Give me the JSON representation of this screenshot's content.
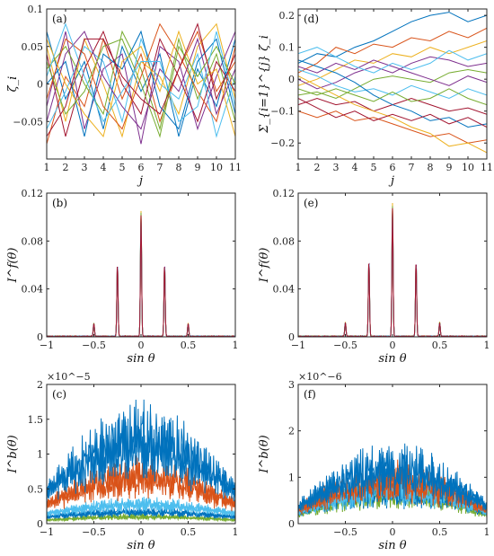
{
  "palette": [
    "#0072BD",
    "#D95319",
    "#EDB120",
    "#7E2F8E",
    "#77AC30",
    "#4DBEEE",
    "#A2142F"
  ],
  "chart_data": [
    {
      "id": "a",
      "type": "line",
      "letter": "(a)",
      "ylabel": "ζ_i",
      "xlabel": "j",
      "xlim": [
        1,
        11
      ],
      "ylim": [
        -0.1,
        0.1
      ],
      "xticks": [
        1,
        2,
        3,
        4,
        5,
        6,
        7,
        8,
        9,
        10,
        11
      ],
      "yticks": [
        -0.1,
        -0.05,
        0,
        0.05,
        0.1
      ],
      "ytick_labels": [
        "",
        "-0.05",
        "0",
        "0.05",
        "0.1"
      ],
      "x": [
        1,
        2,
        3,
        4,
        5,
        6,
        7,
        8,
        9,
        10,
        11
      ],
      "series": [
        {
          "values": [
            0.07,
            -0.02,
            0.03,
            -0.06,
            0.05,
            -0.01,
            0.04,
            -0.07,
            0.02,
            -0.03,
            0.06
          ]
        },
        {
          "values": [
            -0.08,
            0.01,
            -0.03,
            0.06,
            -0.02,
            0.04,
            -0.05,
            0.02,
            0.07,
            -0.01,
            0.03
          ]
        },
        {
          "values": [
            0.05,
            -0.05,
            0.06,
            0.0,
            -0.07,
            0.03,
            0.01,
            -0.04,
            0.05,
            0.08,
            -0.02
          ]
        },
        {
          "values": [
            -0.03,
            0.07,
            -0.06,
            0.02,
            0.04,
            -0.08,
            0.05,
            0.03,
            -0.06,
            0.01,
            0.07
          ]
        },
        {
          "values": [
            0.02,
            0.05,
            0.0,
            -0.04,
            0.07,
            0.02,
            -0.06,
            0.06,
            -0.02,
            0.04,
            -0.05
          ]
        },
        {
          "values": [
            -0.06,
            -0.01,
            0.05,
            0.03,
            -0.05,
            0.06,
            0.0,
            -0.02,
            0.04,
            -0.07,
            0.01
          ]
        },
        {
          "values": [
            0.04,
            -0.07,
            0.02,
            0.07,
            0.0,
            -0.04,
            0.06,
            0.01,
            -0.05,
            0.03,
            -0.01
          ]
        },
        {
          "values": [
            0.0,
            0.03,
            -0.07,
            0.04,
            0.02,
            0.07,
            -0.03,
            -0.06,
            0.03,
            0.06,
            -0.04
          ]
        },
        {
          "values": [
            -0.02,
            0.06,
            0.04,
            -0.03,
            -0.06,
            0.01,
            0.08,
            0.04,
            -0.01,
            -0.05,
            0.05
          ]
        },
        {
          "values": [
            0.06,
            0.0,
            -0.04,
            -0.07,
            0.03,
            0.05,
            -0.01,
            0.07,
            0.0,
            0.02,
            -0.07
          ]
        },
        {
          "values": [
            -0.05,
            0.04,
            0.07,
            0.01,
            -0.03,
            -0.06,
            0.02,
            -0.01,
            0.06,
            -0.04,
            0.02
          ]
        },
        {
          "values": [
            0.03,
            -0.04,
            -0.01,
            0.05,
            0.06,
            0.0,
            -0.07,
            0.05,
            0.01,
            0.05,
            0.0
          ]
        },
        {
          "values": [
            0.01,
            0.08,
            0.01,
            -0.05,
            -0.01,
            0.03,
            0.03,
            -0.05,
            -0.03,
            0.07,
            -0.03
          ]
        },
        {
          "values": [
            -0.07,
            -0.03,
            0.06,
            0.06,
            0.01,
            -0.02,
            -0.04,
            0.02,
            0.08,
            -0.02,
            0.04
          ]
        }
      ]
    },
    {
      "id": "d",
      "type": "line",
      "letter": "(d)",
      "ylabel": "Σ_{i=1}^{j} ζ_i",
      "xlabel": "j",
      "xlim": [
        1,
        11
      ],
      "ylim": [
        -0.25,
        0.22
      ],
      "xticks": [
        1,
        2,
        3,
        4,
        5,
        6,
        7,
        8,
        9,
        10,
        11
      ],
      "yticks": [
        -0.2,
        -0.1,
        0,
        0.1,
        0.2
      ],
      "ytick_labels": [
        "-0.2",
        "-0.1",
        "0",
        "0.1",
        "0.2"
      ],
      "x": [
        1,
        2,
        3,
        4,
        5,
        6,
        7,
        8,
        9,
        10,
        11
      ],
      "series": [
        {
          "values": [
            0.05,
            0.08,
            0.07,
            0.1,
            0.12,
            0.15,
            0.18,
            0.2,
            0.21,
            0.18,
            0.2
          ]
        },
        {
          "values": [
            0.02,
            0.05,
            0.1,
            0.08,
            0.11,
            0.1,
            0.13,
            0.12,
            0.15,
            0.13,
            0.16
          ]
        },
        {
          "values": [
            -0.02,
            0.0,
            0.03,
            0.06,
            0.05,
            0.08,
            0.07,
            0.1,
            0.08,
            0.1,
            0.12
          ]
        },
        {
          "values": [
            0.0,
            -0.03,
            -0.01,
            0.02,
            0.04,
            0.02,
            0.05,
            0.07,
            0.06,
            0.04,
            0.05
          ]
        },
        {
          "values": [
            -0.05,
            -0.04,
            -0.06,
            -0.03,
            0.0,
            0.01,
            0.0,
            -0.01,
            0.02,
            0.03,
            0.02
          ]
        },
        {
          "values": [
            0.03,
            0.01,
            -0.02,
            -0.04,
            -0.03,
            -0.05,
            -0.02,
            -0.04,
            -0.06,
            -0.03,
            -0.05
          ]
        },
        {
          "values": [
            -0.08,
            -0.06,
            -0.08,
            -0.07,
            -0.1,
            -0.08,
            -0.06,
            -0.08,
            -0.1,
            -0.09,
            -0.11
          ]
        },
        {
          "values": [
            0.06,
            0.04,
            0.02,
            -0.01,
            -0.05,
            -0.08,
            -0.1,
            -0.13,
            -0.12,
            -0.15,
            -0.14
          ]
        },
        {
          "values": [
            -0.1,
            -0.12,
            -0.1,
            -0.13,
            -0.12,
            -0.14,
            -0.16,
            -0.18,
            -0.17,
            -0.2,
            -0.19
          ]
        },
        {
          "values": [
            0.01,
            -0.02,
            -0.05,
            -0.08,
            -0.1,
            -0.12,
            -0.15,
            -0.17,
            -0.21,
            -0.2,
            -0.23
          ]
        },
        {
          "values": [
            0.04,
            0.02,
            0.05,
            0.03,
            0.06,
            0.04,
            0.02,
            0.0,
            -0.02,
            0.01,
            -0.01
          ]
        },
        {
          "values": [
            -0.03,
            -0.05,
            -0.03,
            -0.05,
            -0.07,
            -0.04,
            -0.07,
            -0.06,
            -0.03,
            -0.06,
            -0.08
          ]
        },
        {
          "values": [
            0.08,
            0.1,
            0.07,
            0.04,
            0.02,
            0.05,
            0.03,
            0.05,
            0.09,
            0.06,
            0.08
          ]
        },
        {
          "values": [
            -0.06,
            -0.09,
            -0.12,
            -0.1,
            -0.13,
            -0.11,
            -0.13,
            -0.11,
            -0.14,
            -0.12,
            -0.15
          ]
        }
      ]
    },
    {
      "id": "b",
      "type": "line",
      "letter": "(b)",
      "ylabel": "I^f(θ)",
      "xlabel": "sin θ",
      "xlim": [
        -1,
        1
      ],
      "ylim": [
        0,
        0.12
      ],
      "xticks": [
        -1,
        -0.5,
        0,
        0.5,
        1
      ],
      "yticks": [
        0,
        0.04,
        0.08,
        0.12
      ],
      "ytick_labels": [
        "0",
        "0.04",
        "0.08",
        "0.12"
      ],
      "peaks": [
        {
          "x": -0.5,
          "height": 0.011
        },
        {
          "x": -0.25,
          "height": 0.062
        },
        {
          "x": 0,
          "height": 0.105
        },
        {
          "x": 0.25,
          "height": 0.062
        },
        {
          "x": 0.5,
          "height": 0.011
        }
      ]
    },
    {
      "id": "e",
      "type": "line",
      "letter": "(e)",
      "ylabel": "I^f(θ)",
      "xlabel": "sin θ",
      "xlim": [
        -1,
        1
      ],
      "ylim": [
        0,
        0.12
      ],
      "xticks": [
        -1,
        -0.5,
        0,
        0.5,
        1
      ],
      "yticks": [
        0,
        0.04,
        0.08,
        0.12
      ],
      "ytick_labels": [
        "0",
        "0.04",
        "0.08",
        "0.12"
      ],
      "peaks": [
        {
          "x": -0.5,
          "height": 0.012
        },
        {
          "x": -0.25,
          "height": 0.065
        },
        {
          "x": 0,
          "height": 0.111
        },
        {
          "x": 0.25,
          "height": 0.064
        },
        {
          "x": 0.5,
          "height": 0.012
        }
      ]
    },
    {
      "id": "c",
      "type": "line",
      "letter": "(c)",
      "ylabel": "I^b(θ)",
      "xlabel": "sin θ",
      "exponent": "×10^−5",
      "xlim": [
        -1,
        1
      ],
      "ylim": [
        0,
        2
      ],
      "xticks": [
        -1,
        -0.5,
        0,
        0.5,
        1
      ],
      "yticks": [
        0,
        0.5,
        1,
        1.5,
        2
      ],
      "ytick_labels": [
        "0",
        "0.5",
        "1",
        "1.5",
        "2"
      ],
      "envelopes": [
        {
          "base": 0.4,
          "peak": 1.8
        },
        {
          "base": 0.25,
          "peak": 1.0
        },
        {
          "base": 0.15,
          "peak": 0.4
        },
        {
          "base": 0.1,
          "peak": 0.25
        },
        {
          "base": 0.05,
          "peak": 0.15
        }
      ]
    },
    {
      "id": "f",
      "type": "line",
      "letter": "(f)",
      "ylabel": "I^b(θ)",
      "xlabel": "sin θ",
      "exponent": "×10^−6",
      "xlim": [
        -1,
        1
      ],
      "ylim": [
        0,
        3
      ],
      "xticks": [
        -0.5,
        0,
        0.5,
        1
      ],
      "yticks": [
        0,
        1,
        2,
        3
      ],
      "ytick_labels": [
        "0",
        "1",
        "2",
        "3"
      ],
      "envelopes": [
        {
          "base": 0.3,
          "peak": 1.8
        },
        {
          "base": 0.25,
          "peak": 1.4
        },
        {
          "base": 0.2,
          "peak": 1.2
        },
        {
          "base": 0.2,
          "peak": 1.1
        },
        {
          "base": 0.15,
          "peak": 1.0
        }
      ]
    }
  ]
}
